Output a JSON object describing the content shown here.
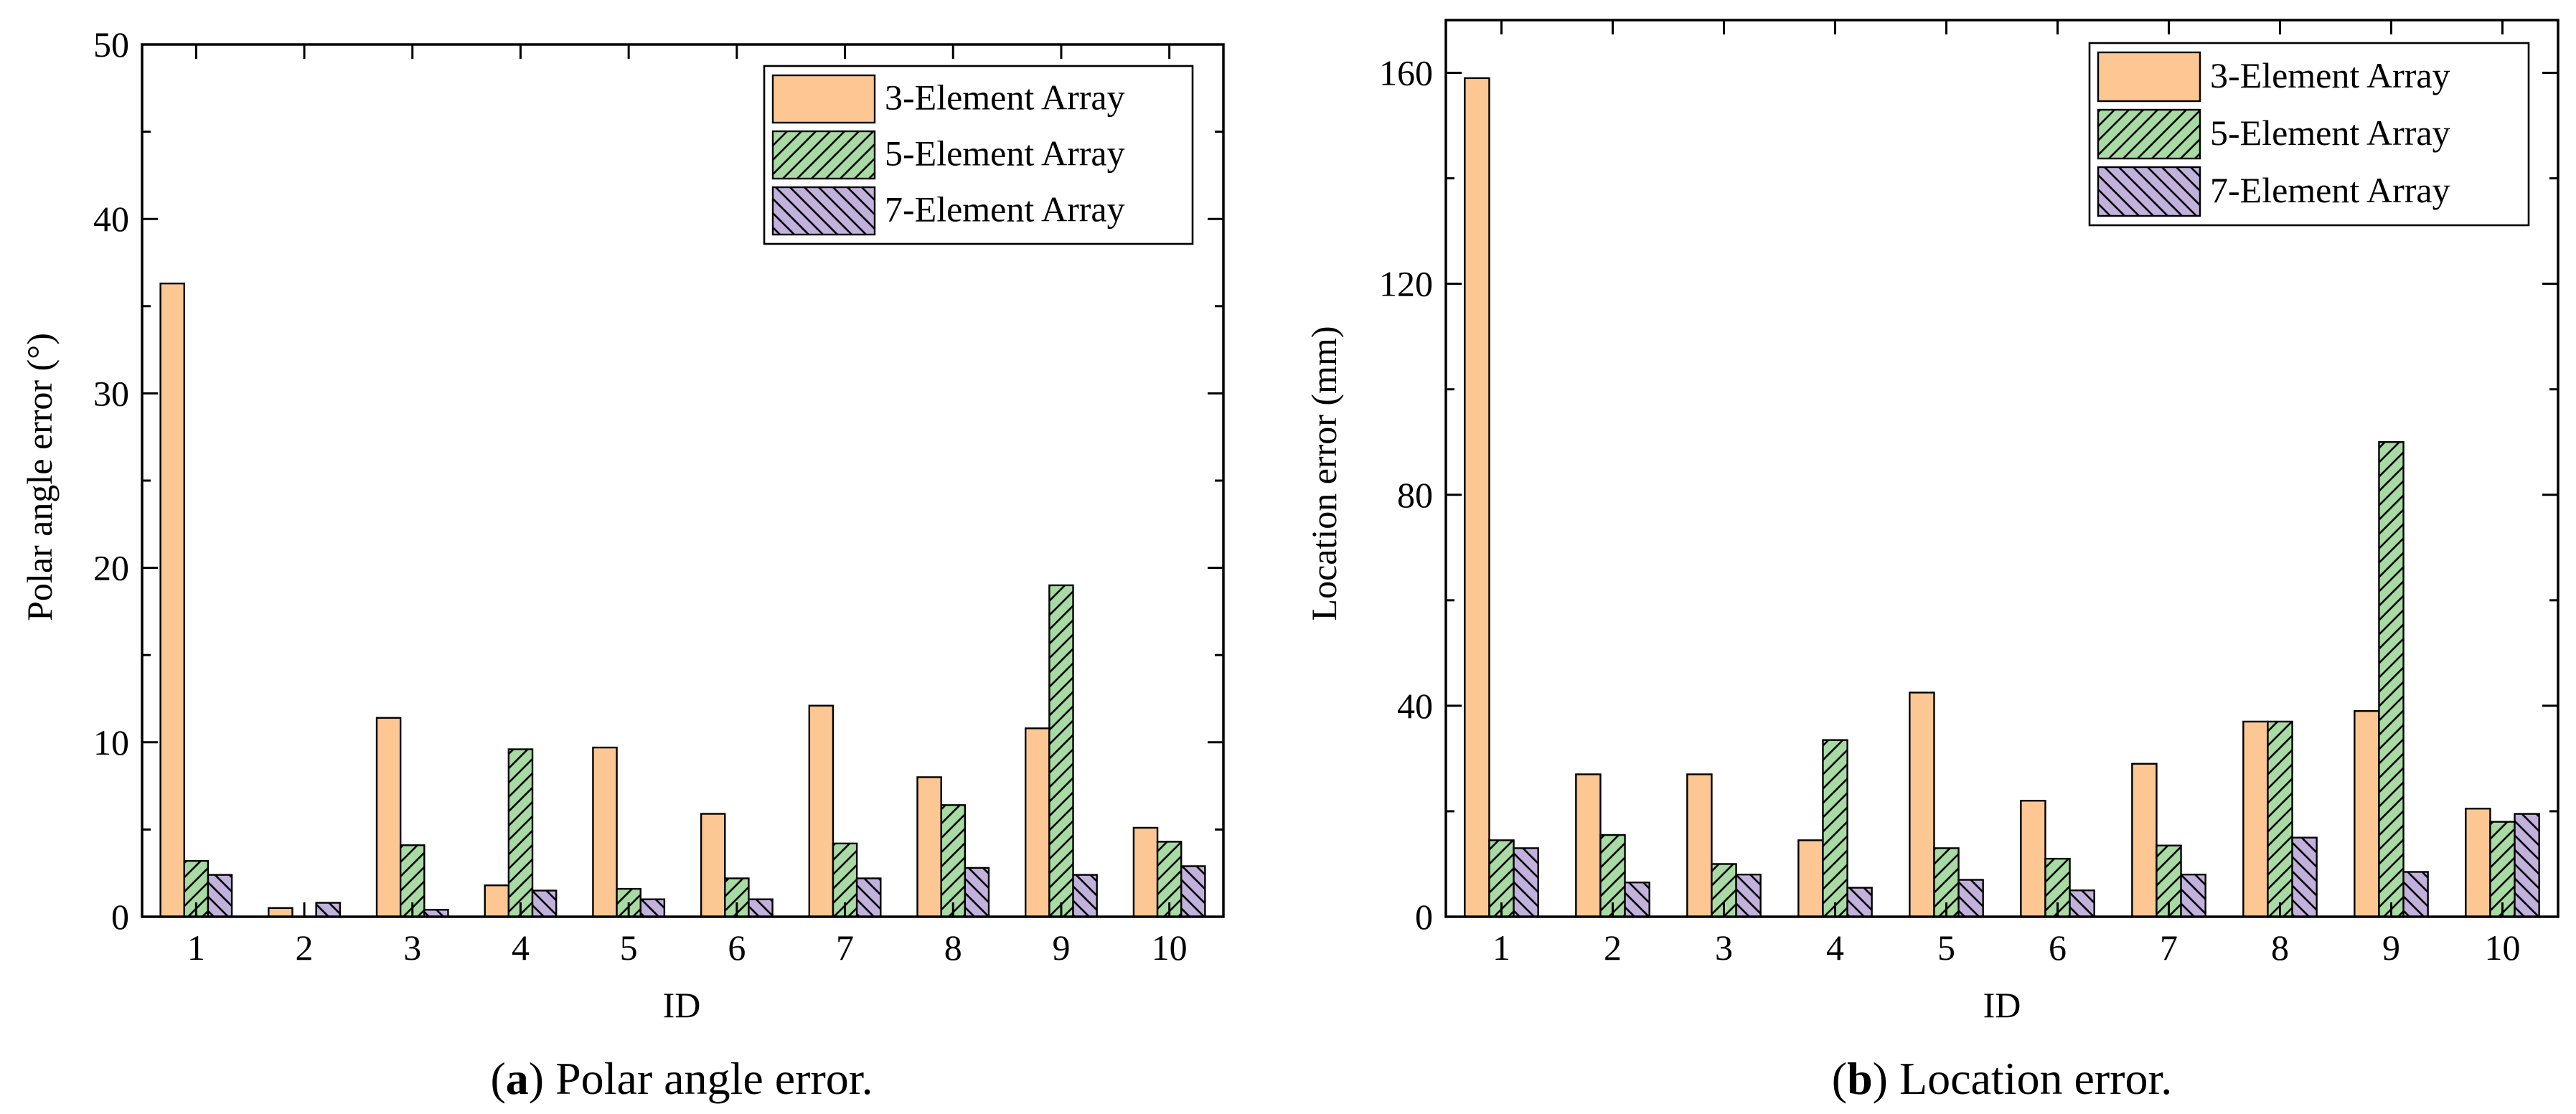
{
  "colors": {
    "series_3": "#fdc793",
    "series_5": "#a8dba3",
    "series_7": "#c2b1dc",
    "axis": "#000000",
    "background": "#ffffff"
  },
  "chart_data": [
    {
      "type": "bar",
      "caption_letter": "a",
      "caption_text": ") Polar angle error.",
      "caption_prefix": "(",
      "xlabel": "ID",
      "ylabel": "Polar angle error (°)",
      "ylim": [
        0,
        50
      ],
      "yticks": [
        "0",
        "10",
        "20",
        "30",
        "40",
        "50"
      ],
      "categories": [
        "1",
        "2",
        "3",
        "4",
        "5",
        "6",
        "7",
        "8",
        "9",
        "10"
      ],
      "legend_position": "top-right",
      "series": [
        {
          "name": "3-Element Array",
          "pattern": "solid",
          "values": [
            36.3,
            0.5,
            11.4,
            1.8,
            9.7,
            5.9,
            12.1,
            8.0,
            10.8,
            5.1
          ]
        },
        {
          "name": "5-Element Array",
          "pattern": "hatch-forward",
          "values": [
            3.2,
            0.0,
            4.1,
            9.6,
            1.6,
            2.2,
            4.2,
            6.4,
            19.0,
            4.3
          ]
        },
        {
          "name": "7-Element Array",
          "pattern": "hatch-back",
          "values": [
            2.4,
            0.8,
            0.4,
            1.5,
            1.0,
            1.0,
            2.2,
            2.8,
            2.4,
            2.9
          ]
        }
      ]
    },
    {
      "type": "bar",
      "caption_letter": "b",
      "caption_text": ") Location error.",
      "caption_prefix": "(",
      "xlabel": "ID",
      "ylabel": "Location error (mm)",
      "ylim": [
        0,
        170
      ],
      "yticks": [
        "0",
        "40",
        "80",
        "120",
        "160"
      ],
      "categories": [
        "1",
        "2",
        "3",
        "4",
        "5",
        "6",
        "7",
        "8",
        "9",
        "10"
      ],
      "legend_position": "top-right",
      "series": [
        {
          "name": "3-Element Array",
          "pattern": "solid",
          "values": [
            159.0,
            27.0,
            27.0,
            14.5,
            42.5,
            22.0,
            29.0,
            37.0,
            39.0,
            20.5
          ]
        },
        {
          "name": "5-Element Array",
          "pattern": "hatch-forward",
          "values": [
            14.5,
            15.5,
            10.0,
            33.5,
            13.0,
            11.0,
            13.5,
            37.0,
            90.0,
            18.0
          ]
        },
        {
          "name": "7-Element Array",
          "pattern": "hatch-back",
          "values": [
            13.0,
            6.5,
            8.0,
            5.5,
            7.0,
            5.0,
            8.0,
            15.0,
            8.5,
            19.5
          ]
        }
      ]
    }
  ]
}
